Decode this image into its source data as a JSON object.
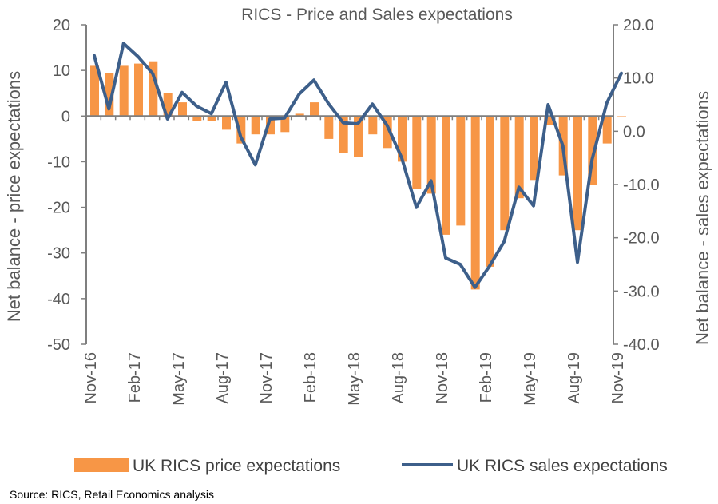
{
  "chart_data": {
    "type": "bar+line",
    "title": "RICS - Price and Sales expectations",
    "ylabel_left": "Net balance - price expectations",
    "ylabel_right": "Net balance - sales expectations",
    "ylim_left": [
      -50,
      20
    ],
    "ylim_right": [
      -40,
      20
    ],
    "yticks_left": [
      "20",
      "10",
      "0",
      "-10",
      "-20",
      "-30",
      "-40",
      "-50"
    ],
    "yticks_right": [
      "20.0",
      "10.0",
      "0.0",
      "-10.0",
      "-20.0",
      "-30.0",
      "-40.0"
    ],
    "xtick_labels": [
      "Nov-16",
      "Feb-17",
      "May-17",
      "Aug-17",
      "Nov-17",
      "Feb-18",
      "May-18",
      "Aug-18",
      "Nov-18",
      "Feb-19",
      "May-19",
      "Aug-19",
      "Nov-19"
    ],
    "months": [
      "Nov-16",
      "Dec-16",
      "Jan-17",
      "Feb-17",
      "Mar-17",
      "Apr-17",
      "May-17",
      "Jun-17",
      "Jul-17",
      "Aug-17",
      "Sep-17",
      "Oct-17",
      "Nov-17",
      "Dec-17",
      "Jan-18",
      "Feb-18",
      "Mar-18",
      "Apr-18",
      "May-18",
      "Jun-18",
      "Jul-18",
      "Aug-18",
      "Sep-18",
      "Oct-18",
      "Nov-18",
      "Dec-18",
      "Jan-19",
      "Feb-19",
      "Mar-19",
      "Apr-19",
      "May-19",
      "Jun-19",
      "Jul-19",
      "Aug-19",
      "Sep-19",
      "Oct-19",
      "Nov-19"
    ],
    "series": [
      {
        "name": "UK RICS price expectations",
        "type": "bar",
        "axis": "left",
        "color": "#F79646",
        "values": [
          11,
          9.5,
          11,
          11.5,
          12,
          5,
          3,
          -1,
          -1,
          -3,
          -6,
          -4,
          -4,
          -3.5,
          0.5,
          3,
          -5,
          -8,
          -9,
          -4,
          -7,
          -10,
          -16,
          -17,
          -26,
          -24,
          -38,
          -33,
          -25,
          -18,
          -14,
          -2,
          -13,
          -25,
          -15,
          -6,
          0
        ]
      },
      {
        "name": "UK RICS sales expectations",
        "type": "line",
        "axis": "right",
        "color": "#3D5F8A",
        "values": [
          14.2,
          4.2,
          16.5,
          14,
          10.8,
          2.3,
          7.3,
          4.7,
          3.3,
          9.2,
          -1,
          -6.3,
          2.3,
          2.5,
          7,
          9.6,
          5.2,
          1.6,
          1.4,
          5.1,
          1.1,
          -5,
          -14.3,
          -9.3,
          -23.8,
          -25,
          -29.3,
          -25.3,
          -20.7,
          -10.5,
          -14,
          5,
          -2.7,
          -24.6,
          -5.3,
          5.3,
          10.9
        ]
      }
    ],
    "legend": {
      "placement": "bottom",
      "items": [
        "UK RICS price expectations",
        "UK RICS sales expectations"
      ]
    },
    "grid": false
  },
  "footer": {
    "source": "Source: RICS, Retail Economics analysis"
  }
}
